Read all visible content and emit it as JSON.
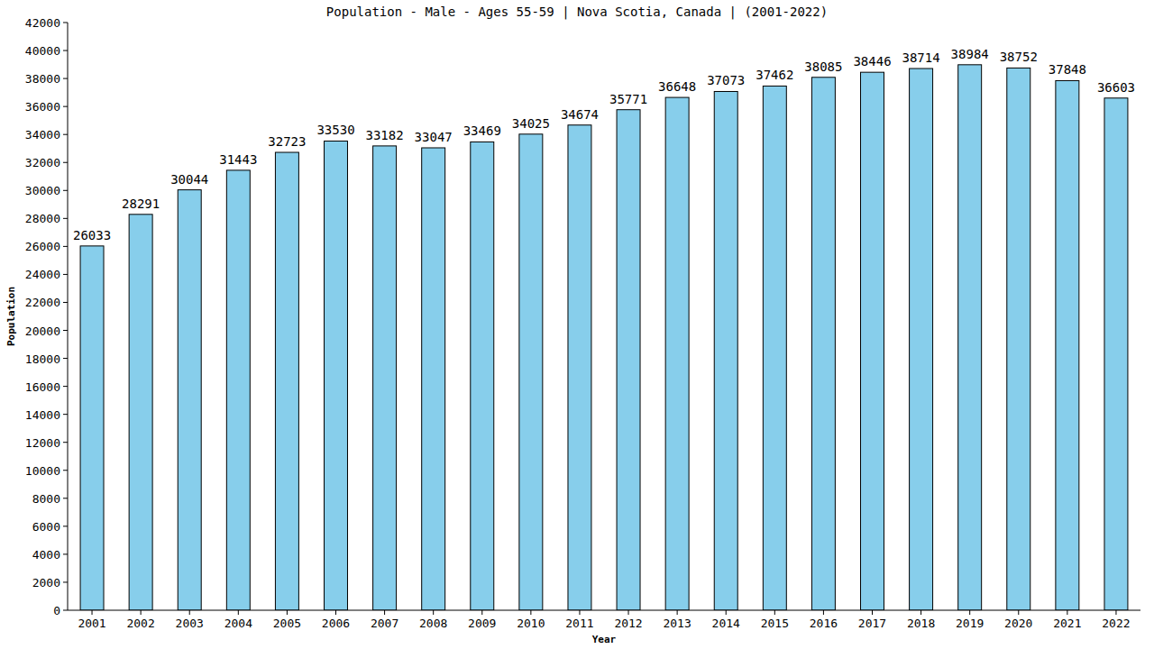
{
  "chart_data": {
    "type": "bar",
    "title": "Population - Male - Ages 55-59 | Nova Scotia, Canada |  (2001-2022)",
    "x_label": "Year",
    "y_label": "Population",
    "categories": [
      "2001",
      "2002",
      "2003",
      "2004",
      "2005",
      "2006",
      "2007",
      "2008",
      "2009",
      "2010",
      "2011",
      "2012",
      "2013",
      "2014",
      "2015",
      "2016",
      "2017",
      "2018",
      "2019",
      "2020",
      "2021",
      "2022"
    ],
    "values": [
      26033,
      28291,
      30044,
      31443,
      32723,
      33530,
      33182,
      33047,
      33469,
      34025,
      34674,
      35771,
      36648,
      37073,
      37462,
      38085,
      38446,
      38714,
      38984,
      38752,
      37848,
      36603
    ],
    "color": "#87ceeb",
    "ylim": [
      0,
      42000
    ],
    "yticks": [
      0,
      2000,
      4000,
      6000,
      8000,
      10000,
      12000,
      14000,
      16000,
      18000,
      20000,
      22000,
      24000,
      26000,
      28000,
      30000,
      32000,
      34000,
      36000,
      38000,
      40000,
      42000
    ],
    "grid": false,
    "data_labels": true
  }
}
